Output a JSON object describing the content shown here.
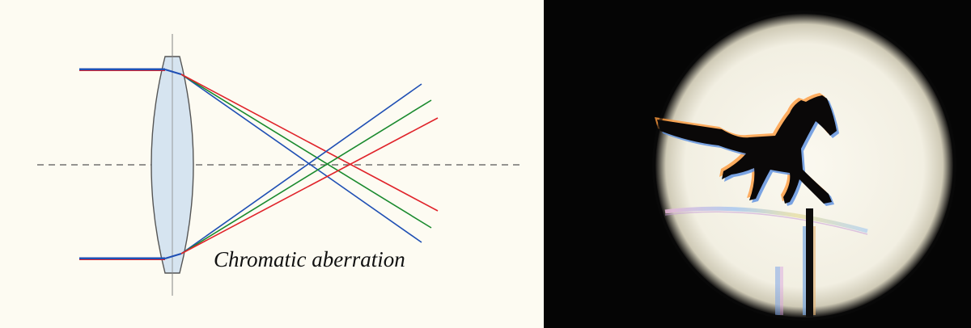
{
  "diagram": {
    "caption": "Chromatic aberration",
    "colors": {
      "background": "#fdfbf2",
      "lens_fill": "#d6e4f0",
      "lens_stroke": "#555555",
      "axis": "#555555",
      "blue_ray": "#1f4fb4",
      "green_ray": "#1a8a2e",
      "red_ray": "#e0232a"
    }
  },
  "photo": {
    "subject": "horse silhouette viewed through lens",
    "colors": {
      "background": "#050505",
      "disc": "#f6f3e8",
      "silhouette": "#0a0808"
    }
  }
}
